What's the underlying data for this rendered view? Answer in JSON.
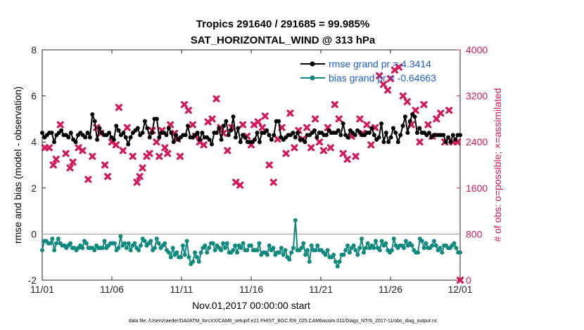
{
  "chart_data": {
    "type": "line",
    "title_line1": "Tropics 291640 / 291685 = 99.985%",
    "title_line2": "SAT_HORIZONTAL_WIND @ 313 hPa",
    "xlabel": "Nov.01,2017 00:00:00 start",
    "ylabel_left": "rmse and bias (model - observation)",
    "ylabel_right": "# of obs: o=possible; ×=assimilated",
    "x_ticks": [
      "11/01",
      "11/06",
      "11/11",
      "11/16",
      "11/21",
      "11/26",
      "12/01"
    ],
    "x_range": [
      0,
      30
    ],
    "ylim_left": [
      -2,
      8
    ],
    "y_ticks_left": [
      "-2",
      "0",
      "2",
      "4",
      "6",
      "8"
    ],
    "ylim_right": [
      0,
      4000
    ],
    "y_ticks_right": [
      "0",
      "800",
      "1600",
      "2400",
      "3200",
      "4000"
    ],
    "zero_line": 0,
    "colors": {
      "rmse": "#000000",
      "bias": "#118a7e",
      "obs": "#d5175a",
      "legend_text": "#1f5fd6"
    },
    "series": [
      {
        "name": "rmse grand pr = 4.3414",
        "axis": "left",
        "values": [
          4.4,
          4.2,
          4.3,
          4.4,
          4.4,
          4.0,
          4.3,
          4.4,
          4.5,
          4.3,
          4.3,
          4.2,
          4.4,
          4.1,
          4.0,
          4.3,
          4.4,
          4.3,
          4.2,
          4.4,
          4.2,
          5.2,
          4.9,
          4.1,
          4.6,
          4.4,
          4.3,
          4.3,
          4.4,
          4.2,
          4.1,
          4.7,
          4.5,
          4.3,
          4.4,
          4.2,
          3.9,
          4.2,
          4.4,
          4.5,
          4.6,
          4.3,
          4.4,
          4.9,
          4.6,
          4.2,
          4.4,
          5.0,
          5.0,
          4.2,
          4.4,
          4.4,
          4.3,
          4.6,
          4.4,
          4.0,
          4.3,
          4.1,
          4.2,
          4.3,
          4.3,
          4.7,
          4.2,
          4.2,
          4.3,
          4.4,
          4.1,
          4.4,
          4.2,
          4.2,
          4.1,
          3.9,
          4.4,
          4.4,
          4.6,
          4.1,
          4.7,
          4.9,
          4.3,
          4.5,
          5.1,
          4.2,
          4.6,
          4.0,
          4.3,
          4.2,
          4.0,
          4.0,
          4.0,
          4.1,
          4.4,
          4.0,
          4.4,
          4.4,
          4.5,
          4.3,
          4.1,
          4.3,
          4.9,
          4.9,
          4.2,
          4.1,
          4.2,
          4.3,
          4.3,
          4.4,
          4.2,
          4.4,
          4.1,
          4.1,
          4.0,
          4.3,
          4.3,
          4.4,
          4.5,
          4.2,
          4.4,
          4.4,
          4.3,
          4.3,
          4.5,
          4.4,
          4.4,
          4.4,
          4.5,
          4.3,
          4.8,
          4.3,
          4.2,
          4.5,
          4.4,
          4.3,
          4.5,
          4.4,
          4.3,
          4.3,
          4.4,
          4.4,
          4.6,
          4.3,
          4.1,
          4.2,
          4.8,
          4.0,
          4.4,
          4.0,
          4.2,
          4.6,
          4.4,
          4.0,
          4.3,
          4.7,
          5.1,
          4.4,
          4.9,
          5.2,
          5.1,
          4.4,
          4.6,
          4.4,
          4.4,
          4.3,
          4.4,
          4.2,
          4.3,
          4.3,
          4.3,
          4.3,
          4.3,
          4.0,
          4.2,
          4.0,
          4.3,
          4.1,
          4.3,
          4.3
        ]
      },
      {
        "name": "bias grand pr = -0.64663",
        "axis": "left",
        "values": [
          -0.7,
          -0.3,
          -0.3,
          -0.4,
          -0.4,
          -0.2,
          -0.7,
          -0.4,
          -0.2,
          -0.4,
          -0.5,
          -0.5,
          -0.6,
          -0.5,
          -0.4,
          -0.6,
          -0.6,
          -0.7,
          -0.6,
          -0.5,
          -0.6,
          -0.3,
          -0.4,
          -0.6,
          -0.6,
          -0.6,
          -0.7,
          -0.5,
          -0.6,
          -0.6,
          -0.6,
          -0.3,
          -0.6,
          -0.5,
          -0.4,
          -0.4,
          -0.4,
          -0.7,
          -0.6,
          -0.1,
          -0.5,
          -0.4,
          -0.6,
          -0.4,
          -0.7,
          -0.5,
          -0.4,
          -0.6,
          -0.7,
          -0.5,
          -0.2,
          -0.3,
          -0.5,
          -0.4,
          -0.3,
          -0.7,
          -0.6,
          -0.2,
          -0.4,
          -0.6,
          -0.5,
          -0.4,
          -0.7,
          -0.8,
          -1.0,
          -0.6,
          -0.9,
          -0.8,
          -1.0,
          -1.0,
          -0.5,
          -0.9,
          -0.3,
          -1.0,
          -1.3,
          -1.2,
          -0.8,
          -1.0,
          -1.2,
          -0.8,
          -0.6,
          -0.5,
          -0.8,
          -0.6,
          -0.4,
          -0.4,
          -0.7,
          -0.5,
          -0.6,
          -0.7,
          -0.4,
          -0.6,
          -0.4,
          -0.8,
          -0.8,
          -0.7,
          -0.5,
          -0.8,
          -0.5,
          -0.6,
          -0.4,
          -0.7,
          -0.7,
          -0.5,
          -0.5,
          -0.7,
          -0.7,
          -0.7,
          -0.4,
          -0.9,
          -0.8,
          -0.8,
          -0.9,
          -0.5,
          -0.7,
          -0.6,
          -0.9,
          -0.8,
          -0.8,
          -0.6,
          -0.9,
          -0.7,
          -1.0,
          -1.1,
          -0.8,
          -0.6,
          0.6,
          -0.7,
          -0.7,
          -0.6,
          -0.4,
          -0.9,
          -0.7,
          -1.2,
          -0.5,
          -0.7,
          -0.7,
          -0.5,
          -0.7,
          -0.7,
          -0.8,
          -0.9,
          -0.7,
          -1.0,
          -1.0,
          -0.9,
          -1.2,
          -1.4,
          -1.2,
          -0.9,
          -0.9,
          -0.7,
          -0.5,
          -0.8,
          -0.6,
          -0.5,
          -0.7,
          -0.9,
          -0.6,
          -0.2,
          -0.8,
          -0.6,
          -0.4,
          -0.6,
          -0.5,
          -0.6,
          -0.3,
          -0.6,
          -0.7,
          -0.3,
          -0.5,
          -0.4,
          -0.7,
          -0.8,
          -0.7,
          -0.2,
          -0.5,
          -0.6,
          -0.5,
          -0.5,
          -0.6,
          -0.3,
          -0.5,
          -0.4,
          -0.5,
          -0.7,
          -0.8,
          -0.8,
          -0.2,
          -0.3,
          -0.6,
          -0.4,
          -0.6,
          -0.6,
          -0.5,
          -0.3,
          -0.5,
          -0.7,
          -0.6,
          -0.8,
          -0.5,
          -0.5,
          -0.6,
          -0.6,
          -0.5,
          -0.4,
          -0.6,
          -0.8,
          -0.8
        ]
      },
      {
        "name": "assimilated obs",
        "axis": "right",
        "type": "scatter",
        "x": [
          0.2,
          0.5,
          0.8,
          1.0,
          1.3,
          1.7,
          2.0,
          2.2,
          2.6,
          2.9,
          3.3,
          3.6,
          3.9,
          4.2,
          4.5,
          4.7,
          5.0,
          5.3,
          5.5,
          5.8,
          6.1,
          6.5,
          6.8,
          7.0,
          7.2,
          7.5,
          7.7,
          7.9,
          8.2,
          8.4,
          8.6,
          8.8,
          9.0,
          9.2,
          9.5,
          9.7,
          9.9,
          10.2,
          10.5,
          10.8,
          11.0,
          11.3,
          11.6,
          11.9,
          12.2,
          12.5,
          12.8,
          13.0,
          13.3,
          13.6,
          13.9,
          14.2,
          14.4,
          14.7,
          15.0,
          15.2,
          15.5,
          15.8,
          16.0,
          16.3,
          16.6,
          16.9,
          17.2,
          17.5,
          17.8,
          18.1,
          18.4,
          18.7,
          19.0,
          19.3,
          19.6,
          19.9,
          20.2,
          20.5,
          20.7,
          21.0,
          21.3,
          21.6,
          21.9,
          22.2,
          22.5,
          22.8,
          23.0,
          23.3,
          23.6,
          23.9,
          24.2,
          24.5,
          24.8,
          25.0,
          25.3,
          25.6,
          25.9,
          26.2,
          26.5,
          26.8,
          27.1,
          27.4,
          27.7,
          28.0,
          28.3,
          28.6,
          28.9,
          29.2,
          29.5,
          29.8,
          30.0
        ],
        "values": [
          2300,
          2300,
          2000,
          2100,
          2700,
          2200,
          1950,
          2050,
          2300,
          2250,
          1750,
          2150,
          2650,
          2550,
          2000,
          1800,
          2400,
          2350,
          3000,
          2250,
          2650,
          2150,
          1700,
          1800,
          1950,
          2150,
          2200,
          2600,
          2400,
          2150,
          2600,
          2300,
          2200,
          2700,
          2550,
          2450,
          2150,
          3050,
          2950,
          2700,
          2500,
          2400,
          2350,
          2750,
          2800,
          3150,
          2650,
          2550,
          2250,
          2650,
          1700,
          1650,
          2700,
          2500,
          2350,
          2700,
          2750,
          2650,
          2850,
          2000,
          1700,
          2450,
          2650,
          2200,
          2900,
          2300,
          2600,
          2450,
          2650,
          2300,
          2800,
          2400,
          2250,
          2650,
          2300,
          3050,
          2800,
          2200,
          2100,
          2500,
          2150,
          2800,
          2550,
          2700,
          2350,
          2650,
          3550,
          3400,
          3300,
          3500,
          3650,
          3700,
          3200,
          3100,
          2700,
          2950,
          2400,
          3050,
          2700,
          2500,
          2800,
          2900,
          2400,
          2950,
          2400,
          2400,
          0
        ]
      }
    ],
    "legend_position": "top-right",
    "footer": "data file: /Users/raeder/DAI/ATM_forcXX/CAM6_setup/f.e21.FHIST_BGC.f09_025.CAM6assim.011/Diags_NTrS_2017-11/obs_diag_output.nc"
  }
}
